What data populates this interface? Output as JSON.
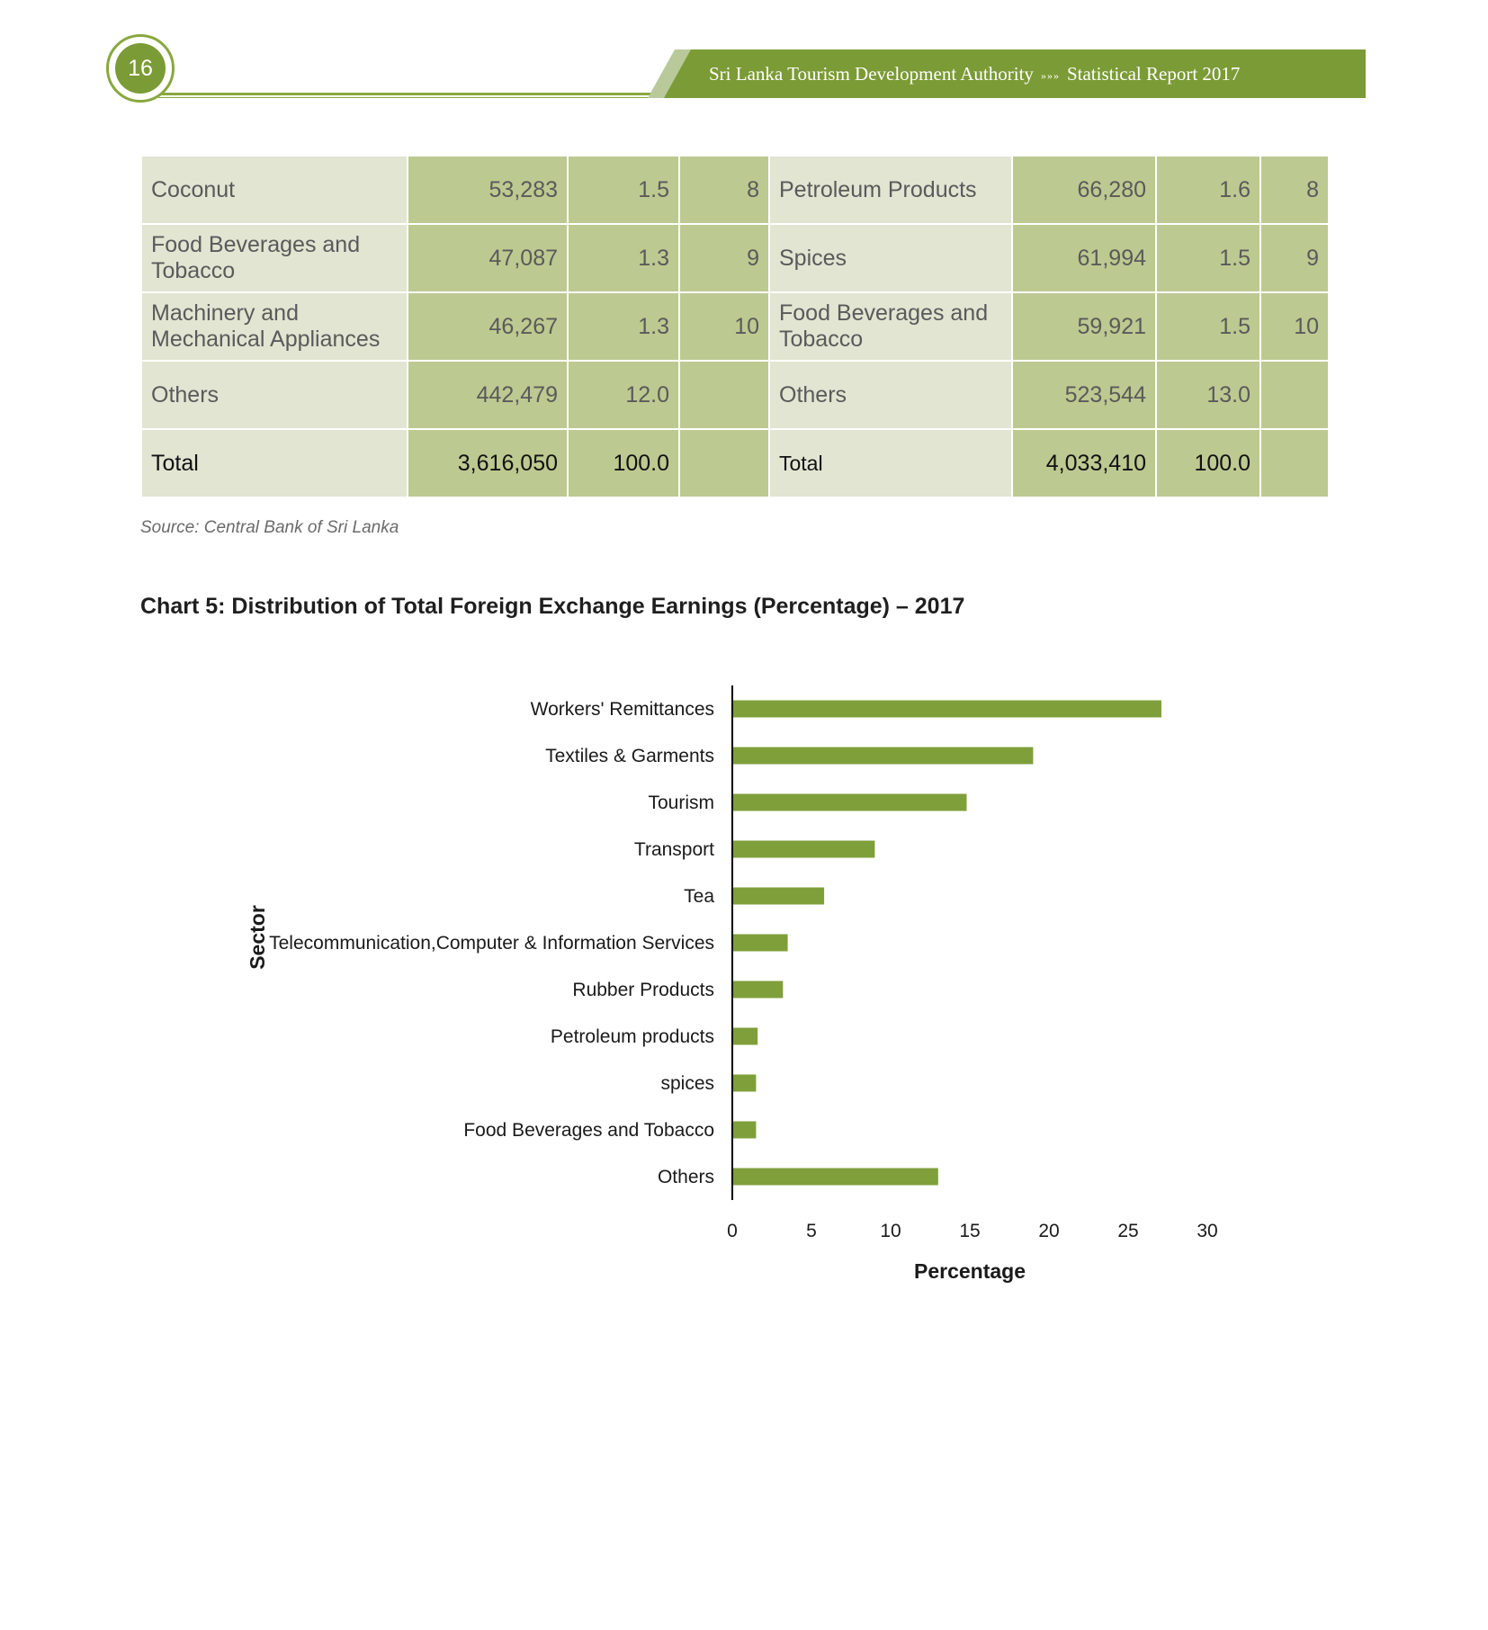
{
  "header": {
    "page_number": "16",
    "publisher": "Sri Lanka Tourism Development Authority",
    "separator": "»»»",
    "report": "Statistical Report 2017"
  },
  "table": {
    "rows": [
      {
        "left_item": "Coconut",
        "left_value": "53,283",
        "left_pct": "1.5",
        "left_rank": "8",
        "right_item": "Petroleum Products",
        "right_value": "66,280",
        "right_pct": "1.6",
        "right_rank": "8"
      },
      {
        "left_item": "Food Beverages and Tobacco",
        "left_value": "47,087",
        "left_pct": "1.3",
        "left_rank": "9",
        "right_item": "Spices",
        "right_value": "61,994",
        "right_pct": "1.5",
        "right_rank": "9"
      },
      {
        "left_item": "Machinery and Mechanical Appliances",
        "left_value": "46,267",
        "left_pct": "1.3",
        "left_rank": "10",
        "right_item": "Food Beverages and Tobacco",
        "right_value": "59,921",
        "right_pct": "1.5",
        "right_rank": "10"
      },
      {
        "left_item": "Others",
        "left_value": "442,479",
        "left_pct": "12.0",
        "left_rank": "",
        "right_item": "Others",
        "right_value": "523,544",
        "right_pct": "13.0",
        "right_rank": ""
      }
    ],
    "total": {
      "left_item": "Total",
      "left_value": "3,616,050",
      "left_pct": "100.0",
      "right_item": "Total",
      "right_value": "4,033,410",
      "right_pct": "100.0"
    }
  },
  "source": "Source: Central Bank of Sri Lanka",
  "chart_title": "Chart 5: Distribution of Total Foreign Exchange Earnings (Percentage) – 2017",
  "chart_data": {
    "type": "bar",
    "orientation": "horizontal",
    "categories": [
      "Workers' Remittances",
      "Textiles & Garments",
      "Tourism",
      "Transport",
      "Tea",
      "Telecommunication,Computer & Information Services",
      "Rubber Products",
      "Petroleum products",
      "spices",
      "Food Beverages and Tobacco",
      "Others"
    ],
    "values": [
      27.1,
      19.0,
      14.8,
      9.0,
      5.8,
      3.5,
      3.2,
      1.6,
      1.5,
      1.5,
      13.0
    ],
    "xlabel": "Percentage",
    "ylabel": "Sector",
    "xlim": [
      0,
      30
    ],
    "xticks": [
      "0",
      "5",
      "10",
      "15",
      "20",
      "25",
      "30"
    ],
    "grid": false,
    "legend": "none",
    "bar_color": "#7f9f3b"
  }
}
